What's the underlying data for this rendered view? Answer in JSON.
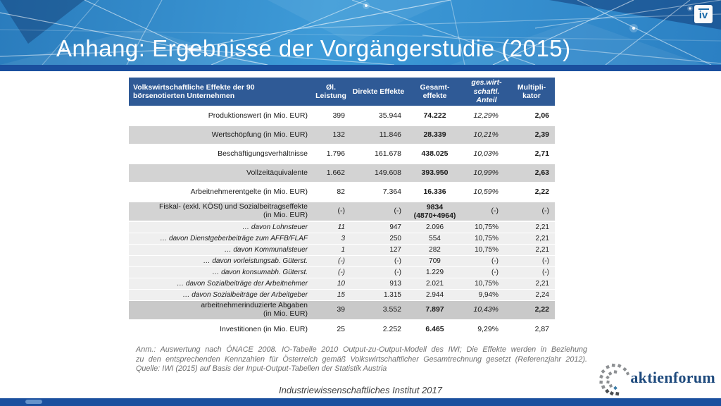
{
  "slide": {
    "title": "Anhang: Ergebnisse der Vorgängerstudie (2015)",
    "iv_logo_text": "iv",
    "footer_text": "Industriewissenschaftliches Institut 2017",
    "brand_text": "aktienforum"
  },
  "colors": {
    "banner_blue": "#2e86c8",
    "stripe_blue": "#1a4f9e",
    "table_header_blue": "#2f5a96",
    "row_gray": "#d3d3d3",
    "row_light_gray": "#efefef",
    "row_dark_gray": "#c9c9c9",
    "brand_navy": "#1e4a7d"
  },
  "table": {
    "header": {
      "label": "Volkswirtschaftliche Effekte der 90\nbörsenotierten Unternehmen",
      "columns": [
        "Øl. Leistung",
        "Direkte Effekte",
        "Gesamt-\neffekte",
        "ges.wirt-\nschaftl.\nAnteil",
        "Multipli-\nkator"
      ]
    },
    "rows": [
      {
        "type": "main",
        "bg": "white",
        "label": "Produktionswert (in Mio. EUR)",
        "values": [
          "399",
          "35.944",
          "74.222",
          "12,29%",
          "2,06"
        ]
      },
      {
        "type": "main",
        "bg": "gray",
        "label": "Wertschöpfung (in Mio. EUR)",
        "values": [
          "132",
          "11.846",
          "28.339",
          "10,21%",
          "2,39"
        ]
      },
      {
        "type": "main",
        "bg": "white",
        "label": "Beschäftigungsverhältnisse",
        "values": [
          "1.796",
          "161.678",
          "438.025",
          "10,03%",
          "2,71"
        ]
      },
      {
        "type": "main",
        "bg": "gray",
        "label": "Vollzeitäquivalente",
        "values": [
          "1.662",
          "149.608",
          "393.950",
          "10,99%",
          "2,63"
        ]
      },
      {
        "type": "main",
        "bg": "white",
        "label": "Arbeitnehmerentgelte (in Mio. EUR)",
        "values": [
          "82",
          "7.364",
          "16.336",
          "10,59%",
          "2,22"
        ]
      },
      {
        "type": "fiskal",
        "bg": "gray",
        "label": "Fiskal- (exkl. KÖSt) und Sozialbeitragseffekte\n(in Mio. EUR)",
        "values": [
          "(-)",
          "(-)",
          "9834\n(4870+4964)",
          "(-)",
          "(-)"
        ]
      },
      {
        "type": "sub",
        "bg": "light",
        "label": "… davon Lohnsteuer",
        "values": [
          "11",
          "947",
          "2.096",
          "10,75%",
          "2,21"
        ]
      },
      {
        "type": "sub",
        "bg": "light",
        "label": "… davon Dienstgeberbeiträge zum AFFB/FLAF",
        "values": [
          "3",
          "250",
          "554",
          "10,75%",
          "2,21"
        ]
      },
      {
        "type": "sub",
        "bg": "light",
        "label": "… davon Kommunalsteuer",
        "values": [
          "1",
          "127",
          "282",
          "10,75%",
          "2,21"
        ]
      },
      {
        "type": "sub",
        "bg": "light",
        "label": "… davon vorleistungsab. Güterst.",
        "values": [
          "(-)",
          "(-)",
          "709",
          "(-)",
          "(-)"
        ]
      },
      {
        "type": "sub",
        "bg": "light",
        "label": "… davon konsumabh. Güterst.",
        "values": [
          "(-)",
          "(-)",
          "1.229",
          "(-)",
          "(-)"
        ]
      },
      {
        "type": "sub",
        "bg": "light",
        "label": "… davon Sozialbeiträge der Arbeitnehmer",
        "values": [
          "10",
          "913",
          "2.021",
          "10,75%",
          "2,21"
        ]
      },
      {
        "type": "sub",
        "bg": "light",
        "label": "… davon Sozialbeiträge der Arbeitgeber",
        "values": [
          "15",
          "1.315",
          "2.944",
          "9,94%",
          "2,24"
        ]
      },
      {
        "type": "dark",
        "bg": "dark",
        "label": "arbeitnehmerinduzierte Abgaben\n(in Mio. EUR)",
        "values": [
          "39",
          "3.552",
          "7.897",
          "10,43%",
          "2,22"
        ]
      },
      {
        "type": "last",
        "bg": "white",
        "label": "Investitionen (in Mio. EUR)",
        "values": [
          "25",
          "2.252",
          "6.465",
          "9,29%",
          "2,87"
        ]
      }
    ]
  },
  "note": {
    "lines": [
      "Anm.: Auswertung nach ÖNACE 2008. IO-Tabelle 2010 Output-zu-Output-Modell des IWI; Die Effekte werden in Beziehung",
      "zu den entsprechenden Kennzahlen für Österreich gemäß Volkswirtschaftlicher Gesamtrechnung gesetzt (Referenzjahr 2012).",
      "Quelle: IWI (2015) auf Basis der Input-Output-Tabellen der Statistik Austria"
    ]
  }
}
